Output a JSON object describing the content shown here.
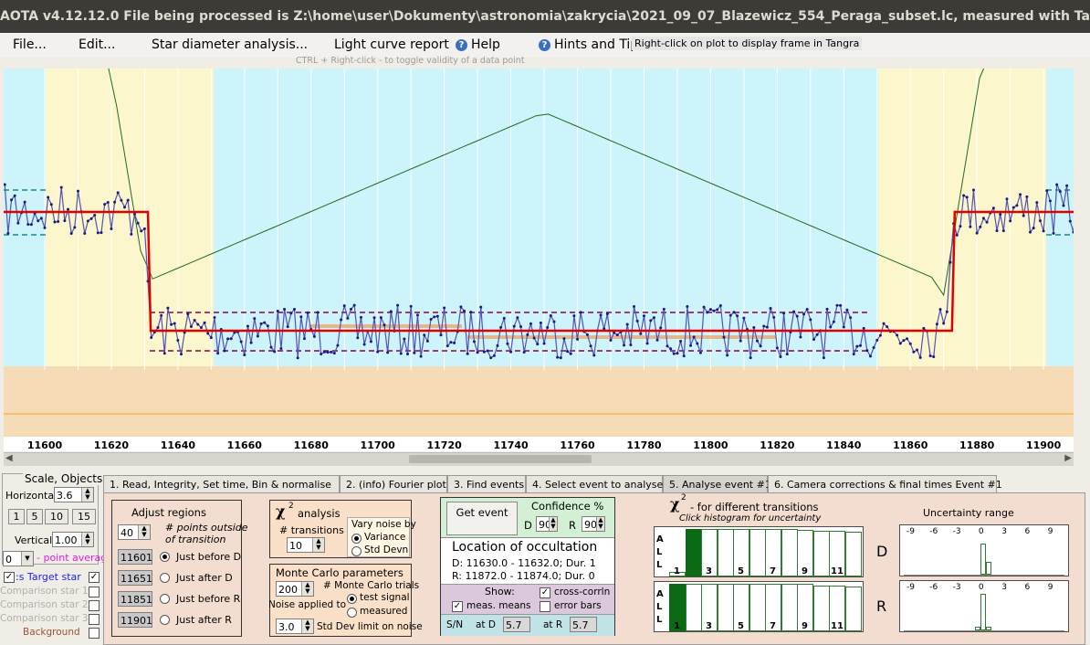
{
  "window": {
    "title": "AOTA v4.12.12.0    File being processed is Z:\\home\\user\\Dokumenty\\astronomia\\zakrycia\\2021_09_07_Blazewicz_554_Peraga_subset.lc, measured with Tangra"
  },
  "menu": {
    "file": "File...",
    "edit": "Edit...",
    "star_diameter": "Star diameter analysis...",
    "light_curve": "Light curve report",
    "help": "Help",
    "hints": "Hints and Tips"
  },
  "tooltip": "Right-click on plot to display frame in Tangra",
  "ctrl_hint": "CTRL + Right-click   -   to toggle validity of a data point",
  "x_ticks": [
    "11600",
    "11620",
    "11640",
    "11660",
    "11680",
    "11700",
    "11720",
    "11740",
    "11760",
    "11780",
    "11800",
    "11820",
    "11840",
    "11860",
    "11880",
    "11900"
  ],
  "left_panel": {
    "scale_title": "Scale, Objects",
    "horizontal_label": "Horizontal",
    "horizontal_value": "3.6",
    "scale_buttons": [
      "1",
      "5",
      "10",
      "15"
    ],
    "vertical_label": "Vertical",
    "vertical_value": "1.00",
    "point_avg_value": "0",
    "point_avg_label": "- point average",
    "targets_label": ":s  Target star",
    "comp1": "Comparison star 1",
    "comp2": "Comparison star 2",
    "comp3": "Comparison star 3",
    "background": "Background"
  },
  "tabs": [
    "1.  Read, Integrity, Set time, Bin & normalise",
    "2. (info)  Fourier plot",
    "3. Find events",
    "4. Select event to analyse",
    "5. Analyse event #1",
    "6. Camera corrections & final times Event #1"
  ],
  "adjust": {
    "title": "Adjust regions",
    "points_value": "40",
    "points_label1": "# points outside",
    "points_label2": "of transition",
    "fields": [
      "11601.0",
      "11651.0",
      "11851.0",
      "11901.0"
    ],
    "options": [
      "Just before D",
      "Just after D",
      "Just before R",
      "Just after R"
    ]
  },
  "chi2": {
    "title": "analysis",
    "transitions_label": "# transitions",
    "transitions_value": "10",
    "vary_label": "Vary noise by",
    "variance": "Variance",
    "std_devn": "Std Devn"
  },
  "monte": {
    "title": "Monte Carlo parameters",
    "trials_value": "200",
    "trials_label": "# Monte Carlo trials",
    "noise_label": "Noise applied to",
    "test_signal": "test signal",
    "measured": "measured",
    "std_value": "3.0",
    "std_label": "Std Dev limit on noise"
  },
  "event": {
    "get_event": "Get event",
    "confidence_label": "Confidence %",
    "d_label": "D",
    "d_value": "90",
    "r_label": "R",
    "r_value": "90",
    "location_title": "Location of occultation",
    "d_line": "D: 11630.0 - 11632.0; Dur. 1",
    "r_line": "R: 11872.0 - 11874.0; Dur. 0",
    "show_label": "Show:",
    "meas_means": "meas. means",
    "cross_corr": "cross-corrln",
    "error_bars": "error bars",
    "sn_label": "S/N",
    "at_d": "at D",
    "sn_d": "5.7",
    "at_r": "at R",
    "sn_r": "5.7"
  },
  "histograms": {
    "title": "-  for different transitions",
    "subtitle": "Click histogram for uncertainty",
    "all_label": [
      "A",
      "L",
      "L"
    ],
    "numbers": [
      "1",
      "3",
      "5",
      "7",
      "9",
      "11"
    ],
    "d_heights": [
      0.1,
      1.0,
      1.0,
      1.0,
      1.0,
      1.0,
      1.0,
      1.0,
      0.98,
      0.97,
      0.97,
      0.95
    ],
    "r_heights": [
      1.0,
      1.0,
      1.0,
      1.0,
      1.0,
      1.0,
      1.0,
      1.0,
      1.0,
      0.97,
      0.97,
      0.95
    ],
    "d_selected": 2,
    "r_selected": 1,
    "d_label": "D",
    "r_label": "R"
  },
  "uncertainty": {
    "title": "Uncertainty range",
    "ticks": [
      "-9",
      "-6",
      "-3",
      "0",
      "3",
      "6",
      "9"
    ]
  },
  "colors": {
    "data": "#3b3ba6",
    "fit": "#e00000",
    "model": "#1e6b1e",
    "band": "#8b0044",
    "baseline_region": "#fbf6cc",
    "event_region": "#cdf3fb",
    "floor": "#f5dcb6"
  }
}
